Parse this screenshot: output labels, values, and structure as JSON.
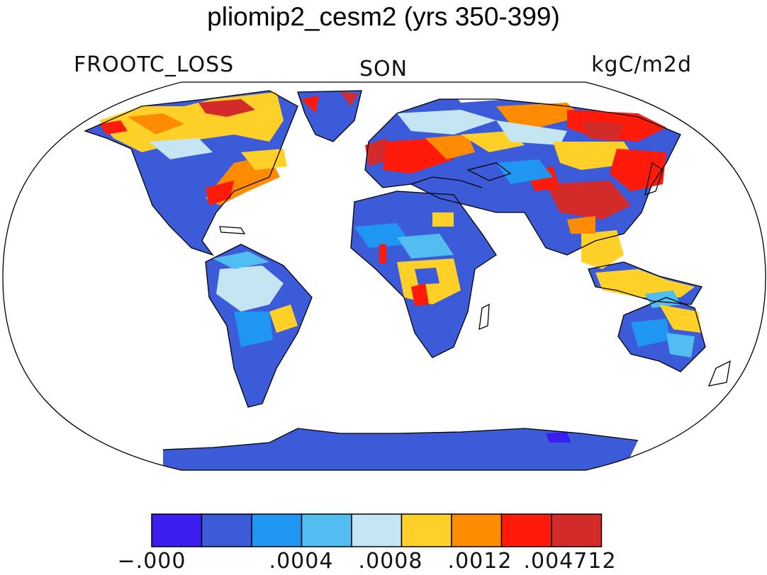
{
  "title": "pliomip2_cesm2 (yrs 350-399)",
  "variable": "FROOTC_LOSS",
  "season": "SON",
  "units": "kgC/m2d",
  "colorbar": {
    "colors": [
      "#3a1ff0",
      "#3b5bd9",
      "#1e96f2",
      "#52bdf0",
      "#c5e5f2",
      "#ffd128",
      "#ff8c00",
      "#ff1a0a",
      "#d32a2a"
    ],
    "labels": [
      "−.000",
      ".0004",
      ".0008",
      ".0012",
      ".004712"
    ]
  },
  "map": {
    "projection": "robinson",
    "ocean_color": "#ffffff",
    "land_fill": "#3b5bd9"
  }
}
